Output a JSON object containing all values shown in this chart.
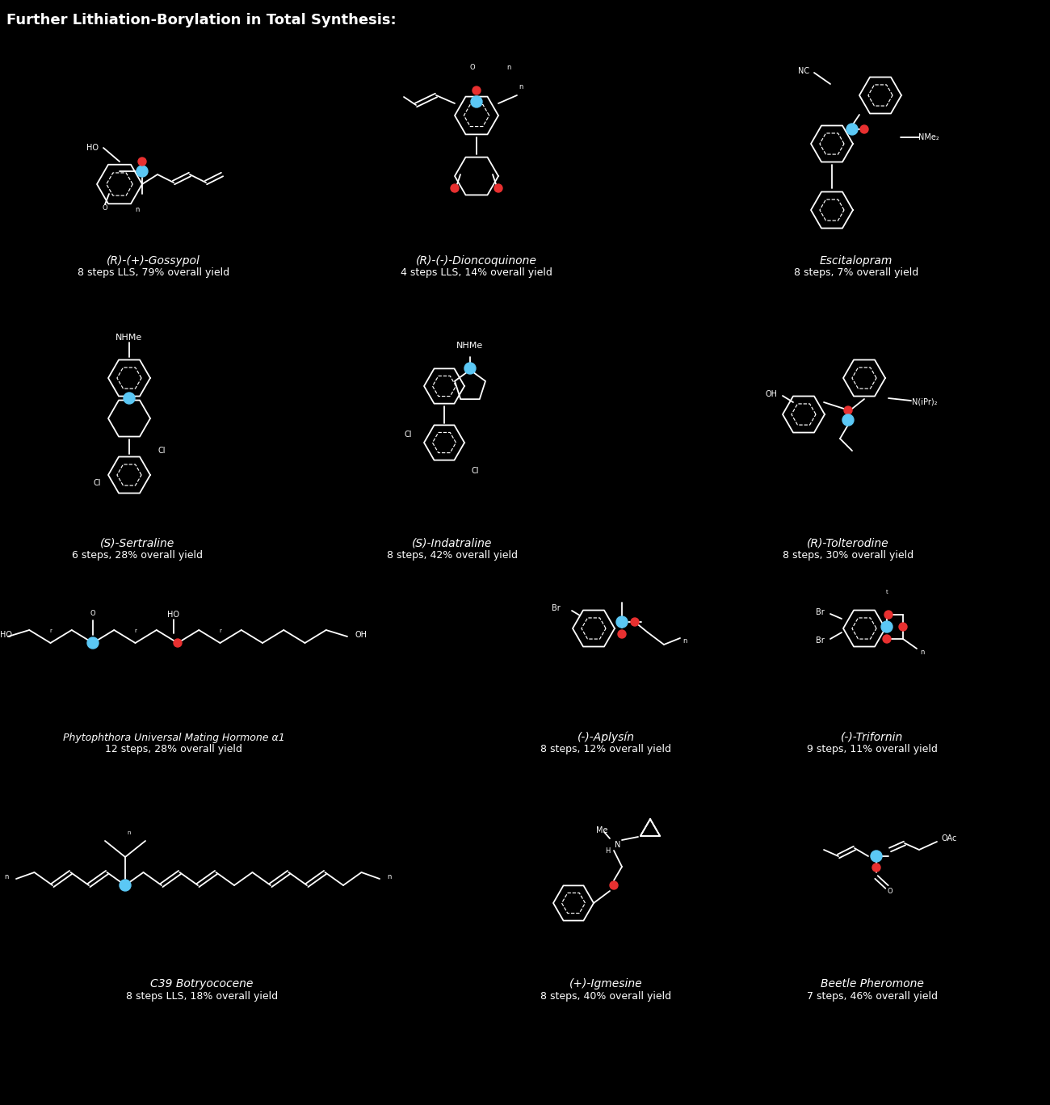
{
  "title": "Further Lithiation-Borylation in Total Synthesis:",
  "background_color": "#000000",
  "text_color": "#ffffff",
  "figsize": [
    13.0,
    13.68
  ],
  "boron_color": "#5bc8f5",
  "oxygen_color": "#e83030",
  "bond_color": "#ffffff",
  "title_fontsize": 13,
  "label_fontsize": 10,
  "sub_fontsize": 9,
  "molecules": [
    {
      "name": "(R)-(+)-Gossypol",
      "sub": "8 steps LLS, 79% overall yield",
      "col": 0,
      "row": 0
    },
    {
      "name": "(R)-(-)-Dioncoquinone",
      "sub": "4 steps LLS, 14% overall yield",
      "col": 1,
      "row": 0
    },
    {
      "name": "Escitalopram",
      "sub": "8 steps, 7% overall yield",
      "col": 2,
      "row": 0
    },
    {
      "name": "(S)-Sertraline",
      "sub": "6 steps, 28% overall yield",
      "col": 0,
      "row": 1
    },
    {
      "name": "(S)-Indatraline",
      "sub": "8 steps, 42% overall yield",
      "col": 1,
      "row": 1
    },
    {
      "name": "(R)-Tolterodine",
      "sub": "8 steps, 30% overall yield",
      "col": 2,
      "row": 1
    },
    {
      "name": "Phytophthora Universal Mating Hormone α1",
      "sub": "12 steps, 28% overall yield",
      "col": 0,
      "row": 2,
      "wide": true
    },
    {
      "name": "(-)-Aplysín",
      "sub": "8 steps, 12% overall yield",
      "col": 1,
      "row": 2
    },
    {
      "name": "(-)-Trifornin",
      "sub": "9 steps, 11% overall yield",
      "col": 2,
      "row": 2
    },
    {
      "name": "C39 Botryococene",
      "sub": "8 steps LLS, 18% overall yield",
      "col": 0,
      "row": 3,
      "wide": true
    },
    {
      "name": "(+)-Igmesine",
      "sub": "8 steps, 40% overall yield",
      "col": 1,
      "row": 3
    },
    {
      "name": "Beetle Pheromone",
      "sub": "7 steps, 46% overall yield",
      "col": 2,
      "row": 3
    }
  ]
}
